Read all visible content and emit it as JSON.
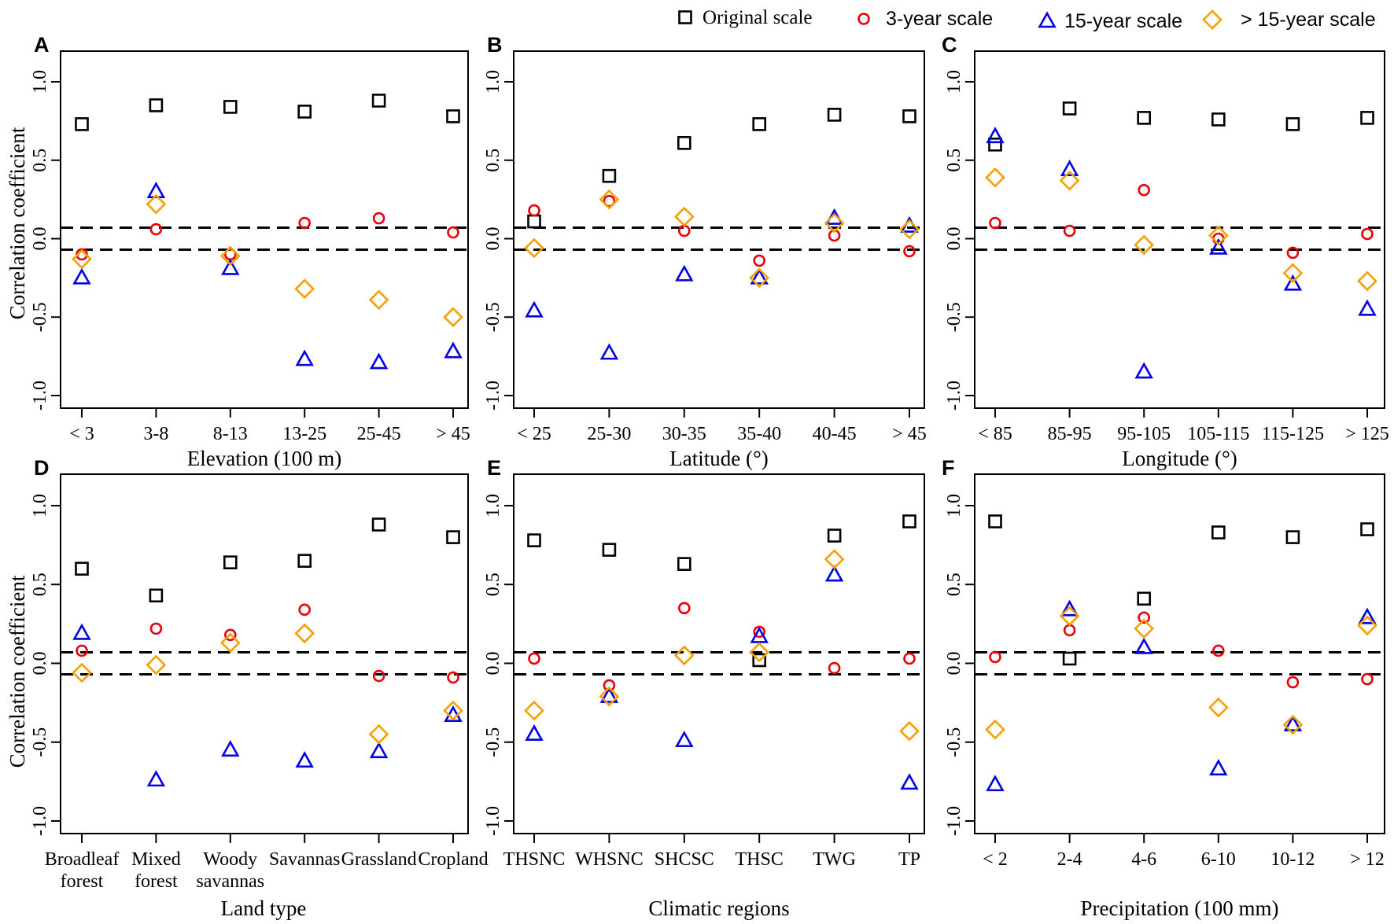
{
  "legend": {
    "items": [
      {
        "label": "Original scale",
        "marker": "square",
        "color": "#000000"
      },
      {
        "label": "3-year scale",
        "marker": "circle",
        "color": "#e8000b"
      },
      {
        "label": "15-year scale",
        "marker": "triangle",
        "color": "#0000e0"
      },
      {
        "label": "> 15-year scale",
        "marker": "diamond",
        "color": "#f5a000"
      }
    ]
  },
  "shared": {
    "ylabel": "Correlation coefficient",
    "ylim": [
      -1.0,
      1.0
    ],
    "yticks": [
      "1.0",
      "0.5",
      "0.0",
      "-0.5",
      "-1.0"
    ],
    "threshold_lines": [
      0.07,
      -0.07
    ]
  },
  "chart_data": [
    {
      "type": "scatter",
      "panel": "A",
      "xlabel": "Elevation (100 m)",
      "categories": [
        [
          "< 3"
        ],
        [
          "3-8"
        ],
        [
          "8-13"
        ],
        [
          "13-25"
        ],
        [
          "25-45"
        ],
        [
          "> 45"
        ]
      ],
      "series": [
        {
          "name": "Original scale",
          "values": [
            0.73,
            0.85,
            0.84,
            0.81,
            0.88,
            0.78
          ]
        },
        {
          "name": "3-year scale",
          "values": [
            -0.1,
            0.06,
            -0.1,
            0.1,
            0.13,
            0.04
          ]
        },
        {
          "name": "15-year scale",
          "values": [
            -0.25,
            0.3,
            -0.19,
            -0.77,
            -0.79,
            -0.72
          ]
        },
        {
          "name": "> 15-year scale",
          "values": [
            -0.13,
            0.22,
            -0.11,
            -0.32,
            -0.39,
            -0.5
          ]
        }
      ]
    },
    {
      "type": "scatter",
      "panel": "B",
      "xlabel": "Latitude (°)",
      "categories": [
        [
          "< 25"
        ],
        [
          "25-30"
        ],
        [
          "30-35"
        ],
        [
          "35-40"
        ],
        [
          "40-45"
        ],
        [
          "> 45"
        ]
      ],
      "series": [
        {
          "name": "Original scale",
          "values": [
            0.11,
            0.4,
            0.61,
            0.73,
            0.79,
            0.78
          ]
        },
        {
          "name": "3-year scale",
          "values": [
            0.18,
            0.24,
            0.05,
            -0.14,
            0.02,
            -0.08
          ]
        },
        {
          "name": "15-year scale",
          "values": [
            -0.46,
            -0.73,
            -0.23,
            -0.25,
            0.13,
            0.08
          ]
        },
        {
          "name": "> 15-year scale",
          "values": [
            -0.06,
            0.25,
            0.14,
            -0.25,
            0.1,
            0.06
          ]
        }
      ]
    },
    {
      "type": "scatter",
      "panel": "C",
      "xlabel": "Longitude (°)",
      "categories": [
        [
          "< 85"
        ],
        [
          "85-95"
        ],
        [
          "95-105"
        ],
        [
          "105-115"
        ],
        [
          "115-125"
        ],
        [
          "> 125"
        ]
      ],
      "series": [
        {
          "name": "Original scale",
          "values": [
            0.6,
            0.83,
            0.77,
            0.76,
            0.73,
            0.77
          ]
        },
        {
          "name": "3-year scale",
          "values": [
            0.1,
            0.05,
            0.31,
            0.0,
            -0.09,
            0.03
          ]
        },
        {
          "name": "15-year scale",
          "values": [
            0.65,
            0.44,
            -0.85,
            -0.06,
            -0.29,
            -0.45
          ]
        },
        {
          "name": "> 15-year scale",
          "values": [
            0.39,
            0.37,
            -0.04,
            0.02,
            -0.22,
            -0.27
          ]
        }
      ]
    },
    {
      "type": "scatter",
      "panel": "D",
      "xlabel": "Land type",
      "categories": [
        [
          "Broadleaf",
          "forest"
        ],
        [
          "Mixed",
          "forest"
        ],
        [
          "Woody",
          "savannas"
        ],
        [
          "Savannas"
        ],
        [
          "Grassland"
        ],
        [
          "Cropland"
        ]
      ],
      "series": [
        {
          "name": "Original scale",
          "values": [
            0.6,
            0.43,
            0.64,
            0.65,
            0.88,
            0.8
          ]
        },
        {
          "name": "3-year scale",
          "values": [
            0.08,
            0.22,
            0.18,
            0.34,
            -0.08,
            -0.09
          ]
        },
        {
          "name": "15-year scale",
          "values": [
            0.19,
            -0.74,
            -0.55,
            -0.62,
            -0.56,
            -0.33
          ]
        },
        {
          "name": "> 15-year scale",
          "values": [
            -0.06,
            -0.01,
            0.13,
            0.19,
            -0.45,
            -0.3
          ]
        }
      ]
    },
    {
      "type": "scatter",
      "panel": "E",
      "xlabel": "Climatic regions",
      "categories": [
        [
          "THSNC"
        ],
        [
          "WHSNC"
        ],
        [
          "SHCSC"
        ],
        [
          "THSC"
        ],
        [
          "TWG"
        ],
        [
          "TP"
        ]
      ],
      "series": [
        {
          "name": "Original scale",
          "values": [
            0.78,
            0.72,
            0.63,
            0.02,
            0.81,
            0.9
          ]
        },
        {
          "name": "3-year scale",
          "values": [
            0.03,
            -0.14,
            0.35,
            0.2,
            -0.03,
            0.03
          ]
        },
        {
          "name": "15-year scale",
          "values": [
            -0.45,
            -0.21,
            -0.49,
            0.17,
            0.56,
            -0.76
          ]
        },
        {
          "name": "> 15-year scale",
          "values": [
            -0.3,
            -0.21,
            0.05,
            0.07,
            0.66,
            -0.43
          ]
        }
      ]
    },
    {
      "type": "scatter",
      "panel": "F",
      "xlabel": "Precipitation (100 mm)",
      "categories": [
        [
          "< 2"
        ],
        [
          "2-4"
        ],
        [
          "4-6"
        ],
        [
          "6-10"
        ],
        [
          "10-12"
        ],
        [
          "> 12"
        ]
      ],
      "series": [
        {
          "name": "Original scale",
          "values": [
            0.9,
            0.03,
            0.41,
            0.83,
            0.8,
            0.85
          ]
        },
        {
          "name": "3-year scale",
          "values": [
            0.04,
            0.21,
            0.29,
            0.08,
            -0.12,
            -0.1
          ]
        },
        {
          "name": "15-year scale",
          "values": [
            -0.77,
            0.34,
            0.1,
            -0.67,
            -0.39,
            0.29
          ]
        },
        {
          "name": "> 15-year scale",
          "values": [
            -0.42,
            0.3,
            0.22,
            -0.28,
            -0.39,
            0.24
          ]
        }
      ]
    }
  ]
}
